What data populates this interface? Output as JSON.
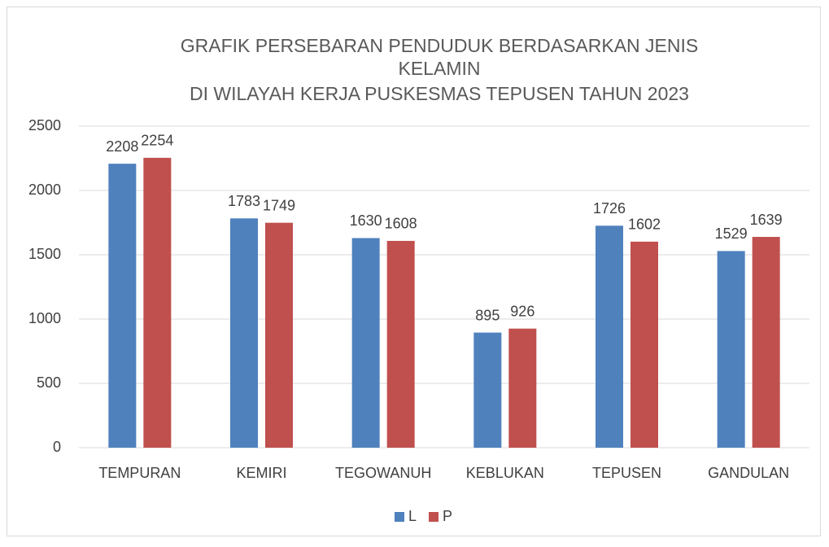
{
  "chart_data": {
    "type": "bar",
    "title": [
      "GRAFIK PERSEBARAN PENDUDUK BERDASARKAN JENIS",
      "KELAMIN",
      "DI WILAYAH KERJA PUSKESMAS TEPUSEN TAHUN 2023"
    ],
    "categories": [
      "TEMPURAN",
      "KEMIRI",
      "TEGOWANUH",
      "KEBLUKAN",
      "TEPUSEN",
      "GANDULAN"
    ],
    "series": [
      {
        "name": "L",
        "color": "#4f81bd",
        "values": [
          2208,
          1783,
          1630,
          895,
          1726,
          1529
        ]
      },
      {
        "name": "P",
        "color": "#c0504d",
        "values": [
          2254,
          1749,
          1608,
          926,
          1602,
          1639
        ]
      }
    ],
    "ylim": [
      0,
      2500
    ],
    "yticks": [
      0,
      500,
      1000,
      1500,
      2000,
      2500
    ],
    "grid": true,
    "legend": "bottom"
  }
}
